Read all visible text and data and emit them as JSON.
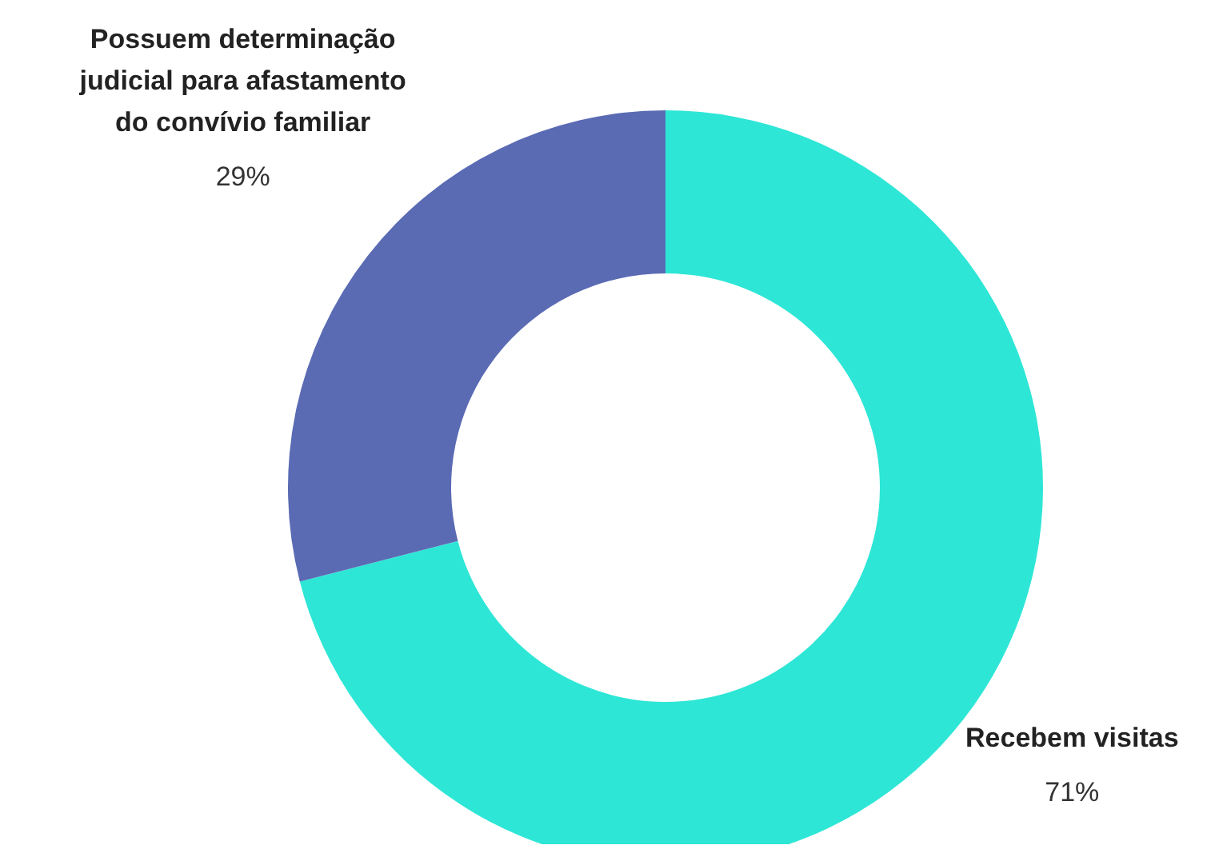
{
  "chart_data": {
    "type": "donut",
    "categories": [
      "Recebem visitas",
      "Possuem determinação judicial para afastamento do convívio familiar"
    ],
    "values": [
      71,
      29
    ],
    "colors": [
      "#2ee6d6",
      "#5a6bb4"
    ],
    "value_labels": [
      "71%",
      "29%"
    ]
  }
}
